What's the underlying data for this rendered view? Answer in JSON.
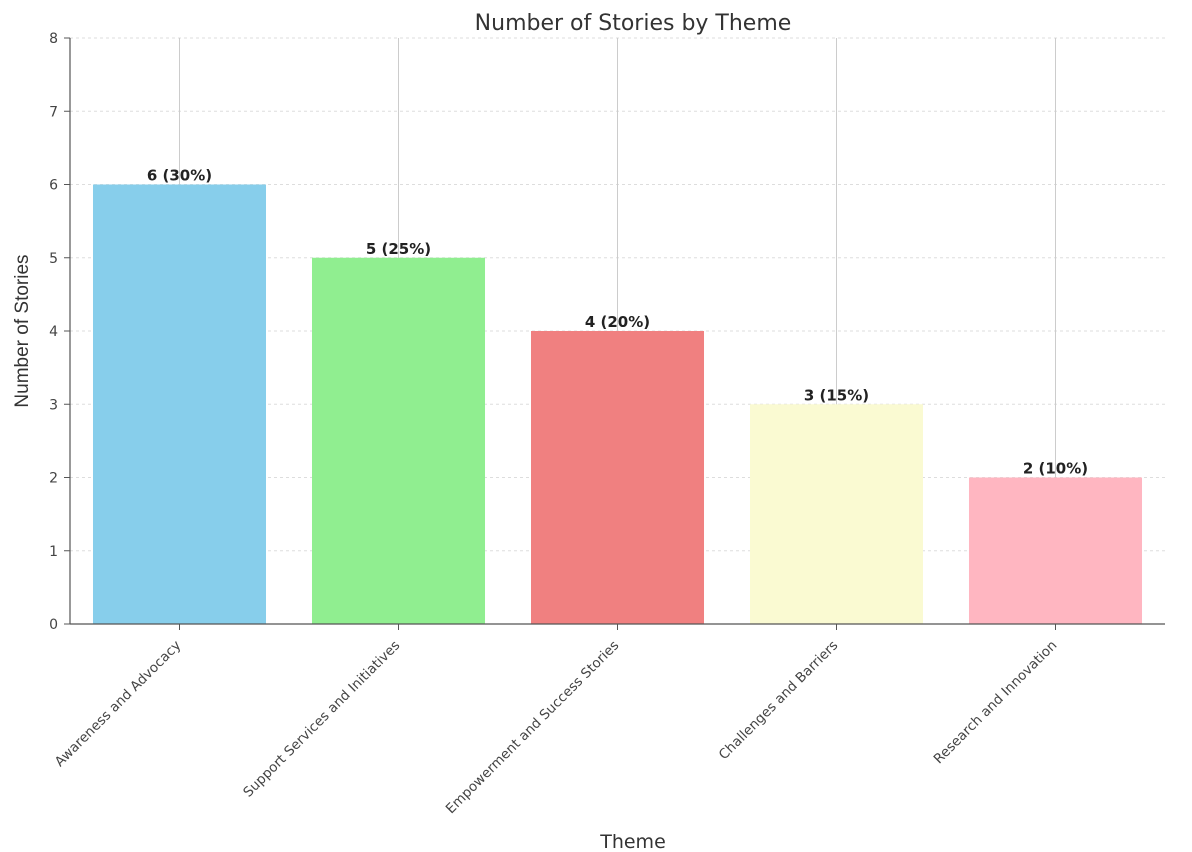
{
  "chart_data": {
    "type": "bar",
    "title": "Number of Stories by Theme",
    "xlabel": "Theme",
    "ylabel": "Number of Stories",
    "categories": [
      "Awareness and Advocacy",
      "Support Services and Initiatives",
      "Empowerment and Success Stories",
      "Challenges and Barriers",
      "Research and Innovation"
    ],
    "values": [
      6,
      5,
      4,
      3,
      2
    ],
    "data_labels": [
      "6 (30%)",
      "5 (25%)",
      "4 (20%)",
      "3 (15%)",
      "2 (10%)"
    ],
    "colors": [
      "#87ceeb",
      "#90ee90",
      "#f08080",
      "#fafad2",
      "#ffb6c1"
    ],
    "ylim": [
      0,
      8
    ],
    "yticks": [
      "0",
      "1",
      "2",
      "3",
      "4",
      "5",
      "6",
      "7",
      "8"
    ],
    "grid": true,
    "legend": "none"
  }
}
